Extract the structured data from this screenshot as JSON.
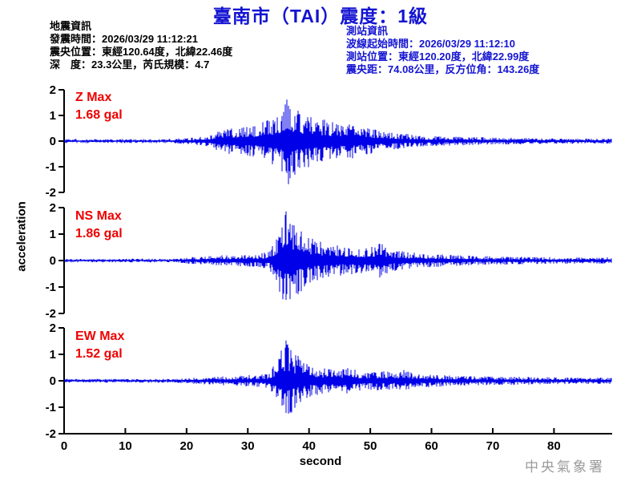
{
  "title": "臺南市（TAI）震度：1級",
  "event_info": {
    "heading": "地震資訊",
    "lines": [
      "發震時間：2026/03/29 11:12:21",
      "震央位置：東經120.64度，北緯22.46度",
      "深　度：23.3公里，芮氏規模：4.7"
    ]
  },
  "station_info": {
    "heading": "測站資訊",
    "lines": [
      "波線起始時間：2026/03/29 11:12:10",
      "測站位置：東經120.20度，北緯22.99度",
      "震央距：74.08公里，反方位角：143.26度"
    ]
  },
  "watermark": "中央氣象署",
  "colors": {
    "accent_blue": "#1414d2",
    "waveform_blue": "#0000e8",
    "label_red": "#ee0000",
    "axis_black": "#000000",
    "watermark_gray": "#9b9b9b"
  },
  "chart_data": {
    "type": "line",
    "title": "臺南市（TAI）震度：1級",
    "xlabel": "second",
    "ylabel": "acceleration",
    "x_range": [
      0,
      89.5
    ],
    "x_ticks": [
      0,
      10,
      20,
      30,
      40,
      50,
      60,
      70,
      80
    ],
    "y_range": [
      -2,
      2
    ],
    "y_ticks": [
      2,
      1,
      0,
      -1,
      -2
    ],
    "amplitude_unit": "gal",
    "grid": false,
    "legend": "none",
    "panels": [
      {
        "id": "Z",
        "label": "Z Max",
        "max_value": 1.68,
        "max_label": "1.68 gal",
        "peak_time": 36.6,
        "peak_polarity": "down",
        "envelope": [
          [
            0,
            0.08
          ],
          [
            17,
            0.08
          ],
          [
            20,
            0.12
          ],
          [
            24,
            0.22
          ],
          [
            25.5,
            0.45
          ],
          [
            27,
            0.5
          ],
          [
            29,
            0.55
          ],
          [
            31,
            0.62
          ],
          [
            33,
            0.8
          ],
          [
            35,
            1.05
          ],
          [
            36.5,
            1.68
          ],
          [
            37.5,
            1.35
          ],
          [
            39,
            1.1
          ],
          [
            41,
            0.95
          ],
          [
            43,
            0.8
          ],
          [
            45,
            0.7
          ],
          [
            46.5,
            0.75
          ],
          [
            48,
            0.6
          ],
          [
            50,
            0.5
          ],
          [
            52,
            0.4
          ],
          [
            54,
            0.33
          ],
          [
            57,
            0.25
          ],
          [
            60,
            0.2
          ],
          [
            64,
            0.17
          ],
          [
            68,
            0.15
          ],
          [
            72,
            0.13
          ],
          [
            76,
            0.12
          ],
          [
            80,
            0.1
          ],
          [
            89.5,
            0.1
          ]
        ]
      },
      {
        "id": "NS",
        "label": "NS Max",
        "max_value": 1.86,
        "max_label": "1.86 gal",
        "peak_time": 36.2,
        "peak_polarity": "up",
        "envelope": [
          [
            0,
            0.07
          ],
          [
            18,
            0.07
          ],
          [
            20,
            0.12
          ],
          [
            23,
            0.16
          ],
          [
            26,
            0.2
          ],
          [
            29,
            0.22
          ],
          [
            32,
            0.26
          ],
          [
            33.5,
            0.35
          ],
          [
            34.5,
            0.8
          ],
          [
            35.5,
            1.5
          ],
          [
            36.2,
            1.86
          ],
          [
            37,
            1.55
          ],
          [
            38,
            1.35
          ],
          [
            39,
            1.1
          ],
          [
            40,
            0.9
          ],
          [
            41.5,
            0.75
          ],
          [
            43,
            0.65
          ],
          [
            45,
            0.58
          ],
          [
            47,
            0.52
          ],
          [
            49,
            0.48
          ],
          [
            51,
            0.55
          ],
          [
            51.8,
            0.8
          ],
          [
            52.5,
            0.5
          ],
          [
            54,
            0.4
          ],
          [
            56,
            0.33
          ],
          [
            58,
            0.28
          ],
          [
            61,
            0.24
          ],
          [
            64,
            0.2
          ],
          [
            68,
            0.17
          ],
          [
            72,
            0.15
          ],
          [
            78,
            0.13
          ],
          [
            89.5,
            0.12
          ]
        ]
      },
      {
        "id": "EW",
        "label": "EW Max",
        "max_value": 1.52,
        "max_label": "1.52 gal",
        "peak_time": 36.3,
        "peak_polarity": "up",
        "envelope": [
          [
            0,
            0.07
          ],
          [
            18,
            0.07
          ],
          [
            20,
            0.1
          ],
          [
            23,
            0.14
          ],
          [
            26,
            0.17
          ],
          [
            29,
            0.2
          ],
          [
            32,
            0.24
          ],
          [
            33.5,
            0.3
          ],
          [
            34.5,
            0.7
          ],
          [
            35.5,
            1.2
          ],
          [
            36.3,
            1.52
          ],
          [
            37,
            1.25
          ],
          [
            38,
            1.0
          ],
          [
            39,
            0.8
          ],
          [
            40,
            0.62
          ],
          [
            41.5,
            0.52
          ],
          [
            43,
            0.45
          ],
          [
            45,
            0.4
          ],
          [
            46.5,
            0.5
          ],
          [
            48,
            0.38
          ],
          [
            50,
            0.33
          ],
          [
            52,
            0.38
          ],
          [
            54,
            0.3
          ],
          [
            55.5,
            0.42
          ],
          [
            57,
            0.28
          ],
          [
            60,
            0.24
          ],
          [
            63,
            0.2
          ],
          [
            66,
            0.18
          ],
          [
            70,
            0.16
          ],
          [
            75,
            0.15
          ],
          [
            80,
            0.13
          ],
          [
            89.5,
            0.12
          ]
        ]
      }
    ]
  }
}
